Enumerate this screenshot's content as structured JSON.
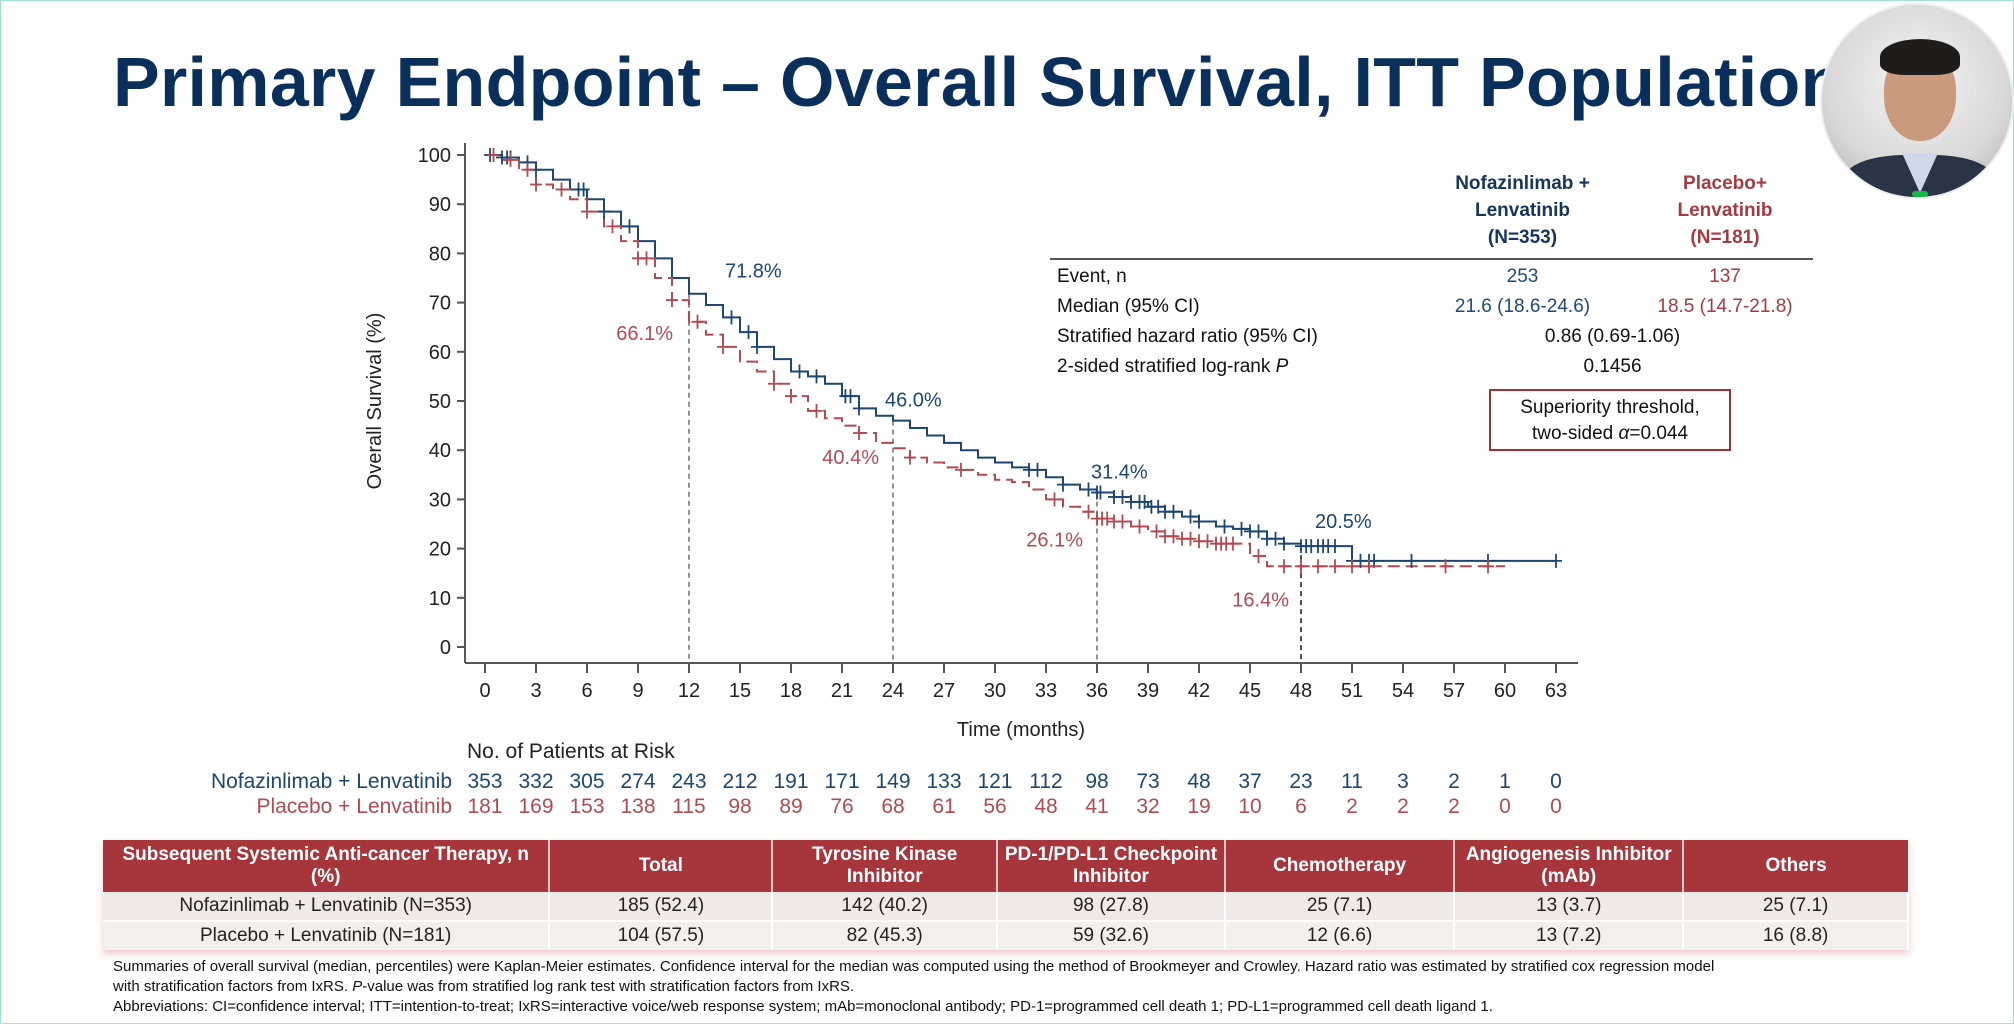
{
  "slide": {
    "title": "Primary Endpoint – Overall Survival, ITT Population"
  },
  "webcam": {
    "label": "presenter-video"
  },
  "chart_data": {
    "type": "line",
    "subtype": "kaplan-meier",
    "title": "",
    "xlabel": "Time (months)",
    "ylabel": "Overall Survival (%)",
    "xlim": [
      0,
      63
    ],
    "ylim": [
      0,
      100
    ],
    "xticks": [
      0,
      3,
      6,
      9,
      12,
      15,
      18,
      21,
      24,
      27,
      30,
      33,
      36,
      39,
      42,
      45,
      48,
      51,
      54,
      57,
      60,
      63
    ],
    "yticks": [
      0,
      10,
      20,
      30,
      40,
      50,
      60,
      70,
      80,
      90,
      100
    ],
    "grid": false,
    "reference_lines_x": [
      12,
      24,
      36,
      48
    ],
    "series": [
      {
        "name": "Nofazinlimab + Lenvatinib",
        "color": "#1d4672",
        "style": "solid",
        "x": [
          0,
          1,
          2,
          3,
          4,
          5,
          6,
          7,
          8,
          9,
          10,
          11,
          12,
          13,
          14,
          15,
          16,
          17,
          18,
          19,
          20,
          21,
          22,
          23,
          24,
          25,
          26,
          27,
          28,
          29,
          30,
          31,
          32,
          33,
          34,
          35,
          36,
          37,
          38,
          39,
          40,
          41,
          42,
          43,
          44,
          45,
          46,
          47,
          48,
          49,
          50,
          51,
          52,
          54,
          56,
          58,
          60,
          63
        ],
        "y": [
          100,
          99.5,
          98.5,
          97,
          95,
          93,
          91,
          88.5,
          85.5,
          82.5,
          79,
          75,
          71.8,
          69.5,
          67,
          64,
          61,
          58.5,
          56,
          55,
          53.5,
          51,
          48.5,
          47,
          46,
          44.5,
          43,
          41.5,
          40,
          38.5,
          37.5,
          36.5,
          36,
          34.5,
          33,
          32,
          31.4,
          30.5,
          29.5,
          28.5,
          27.5,
          26.5,
          25.5,
          24.5,
          24,
          23.5,
          22,
          21,
          20.5,
          20.5,
          20.5,
          17.5,
          17.5,
          17.5,
          17.5,
          17.5,
          17.5,
          17.5
        ],
        "censor_x": [
          0.3,
          1,
          1.3,
          1.5,
          2.5,
          3,
          5.5,
          5.8,
          7,
          8.5,
          14.5,
          15.5,
          16,
          18.5,
          19.5,
          21.2,
          21.5,
          22,
          32,
          32.5,
          34,
          35.5,
          36,
          36.2,
          37,
          37.5,
          38,
          38.5,
          38.8,
          39.2,
          39.6,
          40,
          40.5,
          41.5,
          42,
          43.5,
          44.5,
          45,
          45.5,
          46,
          46.5,
          47,
          48,
          48.3,
          48.6,
          49,
          49.3,
          49.6,
          50,
          51,
          51.5,
          52,
          52.3,
          54.5,
          59,
          63
        ]
      },
      {
        "name": "Placebo + Lenvatinib",
        "color": "#b34a52",
        "style": "dashed",
        "x": [
          0,
          1,
          2,
          3,
          4,
          5,
          6,
          7,
          8,
          9,
          10,
          11,
          12,
          13,
          14,
          15,
          16,
          17,
          18,
          19,
          20,
          21,
          22,
          23,
          24,
          25,
          26,
          27,
          28,
          29,
          30,
          31,
          32,
          33,
          34,
          35,
          36,
          37,
          38,
          39,
          40,
          41,
          42,
          43,
          44,
          45,
          46,
          47,
          48,
          50,
          52,
          54,
          56,
          58,
          60
        ],
        "y": [
          100,
          99,
          97,
          94,
          93,
          91,
          88.5,
          85.5,
          82.5,
          79,
          75,
          70.5,
          66.1,
          63.5,
          61,
          58,
          56,
          53.5,
          51,
          48,
          46.5,
          45,
          43.5,
          41.5,
          40.4,
          38.5,
          37.5,
          36.5,
          36,
          35,
          34,
          33.5,
          32,
          30,
          28.5,
          27.5,
          26.1,
          25.5,
          24.5,
          23.5,
          22.5,
          22,
          21.5,
          21,
          21,
          18.5,
          16.4,
          16.4,
          16.4,
          16.4,
          16.4,
          16.4,
          16.4,
          16.4,
          16.4
        ],
        "censor_x": [
          0.5,
          1.5,
          2.5,
          3,
          4.5,
          6,
          7.5,
          9,
          9.5,
          11,
          12.5,
          14,
          17,
          18,
          19.5,
          22,
          25,
          28,
          33.5,
          35.5,
          36,
          36.3,
          36.6,
          37,
          37.5,
          38.5,
          39.5,
          40,
          40.5,
          41,
          41.5,
          42,
          42.5,
          43,
          43.3,
          43.6,
          44,
          45.5,
          47,
          48,
          49,
          50,
          51,
          52,
          56.5,
          59
        ]
      }
    ],
    "annotations": [
      {
        "x": 12,
        "text": "71.8%",
        "series": "Nofazinlimab + Lenvatinib",
        "value": 71.8
      },
      {
        "x": 12,
        "text": "66.1%",
        "series": "Placebo + Lenvatinib",
        "value": 66.1
      },
      {
        "x": 24,
        "text": "46.0%",
        "series": "Nofazinlimab + Lenvatinib",
        "value": 46.0
      },
      {
        "x": 24,
        "text": "40.4%",
        "series": "Placebo + Lenvatinib",
        "value": 40.4
      },
      {
        "x": 36,
        "text": "31.4%",
        "series": "Nofazinlimab + Lenvatinib",
        "value": 31.4
      },
      {
        "x": 36,
        "text": "26.1%",
        "series": "Placebo + Lenvatinib",
        "value": 26.1
      },
      {
        "x": 48,
        "text": "20.5%",
        "series": "Nofazinlimab + Lenvatinib",
        "value": 20.5
      },
      {
        "x": 48,
        "text": "16.4%",
        "series": "Placebo + Lenvatinib",
        "value": 16.4
      }
    ],
    "legend": "none (groups labeled in stats table)"
  },
  "stats_table": {
    "col_a_header": [
      "Nofazinlimab +",
      "Lenvatinib",
      "(N=353)"
    ],
    "col_b_header": [
      "Placebo+",
      "Lenvatinib",
      "(N=181)"
    ],
    "rows": [
      {
        "label": "Event, n",
        "a": "253",
        "b": "137"
      },
      {
        "label": "Median (95% CI)",
        "a": "21.6 (18.6-24.6)",
        "b": "18.5 (14.7-21.8)"
      },
      {
        "label": "Stratified hazard ratio (95% CI)",
        "combined": "0.86 (0.69-1.06)"
      },
      {
        "label": "2-sided stratified log-rank ",
        "label_italic": "P",
        "combined": "0.1456"
      }
    ],
    "threshold_line1": "Superiority threshold,",
    "threshold_line2_prefix": "two-sided ",
    "threshold_alpha": "α",
    "threshold_line2_suffix": "=0.044",
    "accent_border": "#a0303a"
  },
  "at_risk": {
    "heading": "No. of Patients at Risk",
    "rows": [
      {
        "label": "Nofazinlimab + Lenvatinib",
        "color": "#1d4672",
        "values": [
          "353",
          "332",
          "305",
          "274",
          "243",
          "212",
          "191",
          "171",
          "149",
          "133",
          "121",
          "112",
          "98",
          "73",
          "48",
          "37",
          "23",
          "11",
          "3",
          "2",
          "1",
          "0"
        ]
      },
      {
        "label": "Placebo + Lenvatinib",
        "color": "#b34a52",
        "values": [
          "181",
          "169",
          "153",
          "138",
          "115",
          "98",
          "89",
          "76",
          "68",
          "61",
          "56",
          "48",
          "41",
          "32",
          "19",
          "10",
          "6",
          "2",
          "2",
          "2",
          "0",
          "0"
        ]
      }
    ]
  },
  "subsequent_therapy": {
    "header_color": "#a6353c",
    "columns": [
      "Subsequent Systemic Anti-cancer Therapy, n (%)",
      "Total",
      "Tyrosine Kinase Inhibitor",
      "PD-1/PD-L1 Checkpoint Inhibitor",
      "Chemotherapy",
      "Angiogenesis Inhibitor (mAb)",
      "Others"
    ],
    "rows": [
      [
        "Nofazinlimab + Lenvatinib (N=353)",
        "185 (52.4)",
        "142 (40.2)",
        "98 (27.8)",
        "25 (7.1)",
        "13 (3.7)",
        "25 (7.1)"
      ],
      [
        "Placebo + Lenvatinib (N=181)",
        "104 (57.5)",
        "82 (45.3)",
        "59 (32.6)",
        "12 (6.6)",
        "13 (7.2)",
        "16 (8.8)"
      ]
    ]
  },
  "footnotes": {
    "line1": "Summaries of overall survival (median, percentiles) were Kaplan-Meier estimates. Confidence interval for the median was computed using the method of Brookmeyer and Crowley. Hazard ratio was estimated by stratified cox regression model",
    "line2_prefix": "with stratification factors from IxRS. ",
    "line2_italic": "P",
    "line2_suffix": "-value was from stratified log rank test with stratification factors from IxRS.",
    "line3": "Abbreviations: CI=confidence interval; ITT=intention-to-treat; IxRS=interactive voice/web response system; mAb=monoclonal antibody; PD-1=programmed cell death 1; PD-L1=programmed cell death ligand 1."
  }
}
